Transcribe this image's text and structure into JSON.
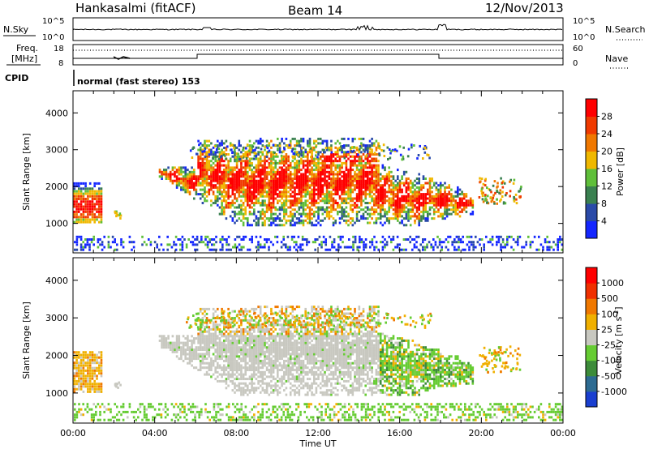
{
  "header": {
    "station": "Hankasalmi (fitACF)",
    "beam": "Beam 14",
    "date": "12/Nov/2013"
  },
  "status_panel": {
    "nsky_label": "N.Sky",
    "nsearch_label": "N.Search",
    "freq_label_1": "Freq.",
    "freq_label_2": "[MHz]",
    "nave_label": "Nave",
    "cpid_label": "CPID",
    "cpid_text": "normal (fast stereo) 153",
    "left_ticks": [
      "10^5",
      "10^0",
      "18",
      "8"
    ],
    "right_ticks": [
      "10^5",
      "10^0",
      "60",
      "0"
    ]
  },
  "chart_data": [
    {
      "type": "heatmap",
      "name": "power",
      "xlabel": "",
      "ylabel": "Slant Range [km]",
      "x_ticks": [
        "00:00",
        "04:00",
        "08:00",
        "12:00",
        "16:00",
        "20:00",
        "00:00"
      ],
      "y_ticks": [
        1000,
        2000,
        3000,
        4000
      ],
      "ylim": [
        200,
        4600
      ],
      "colorbar_label": "Power [dB]",
      "colorbar_ticks": [
        4,
        8,
        12,
        16,
        20,
        24,
        28
      ],
      "colors": [
        "#1426ff",
        "#2a4aa8",
        "#3a8050",
        "#5fbf3a",
        "#f0b800",
        "#f07800",
        "#f03a00",
        "#ff0000"
      ]
    },
    {
      "type": "heatmap",
      "name": "velocity",
      "xlabel": "Time UT",
      "ylabel": "Slant Range [km]",
      "x_ticks": [
        "00:00",
        "04:00",
        "08:00",
        "12:00",
        "16:00",
        "20:00",
        "00:00"
      ],
      "y_ticks": [
        1000,
        2000,
        3000,
        4000
      ],
      "ylim": [
        200,
        4600
      ],
      "colorbar_label": "Velocity [m s^-1]",
      "colorbar_ticks": [
        1000,
        500,
        100,
        25,
        -25,
        -100,
        -500,
        -1000
      ],
      "colors": [
        "#1a3fd0",
        "#2d6b92",
        "#3d8c3a",
        "#66cc33",
        "#c8c8c0",
        "#f0b000",
        "#f07800",
        "#f03000",
        "#ff0000"
      ]
    }
  ]
}
